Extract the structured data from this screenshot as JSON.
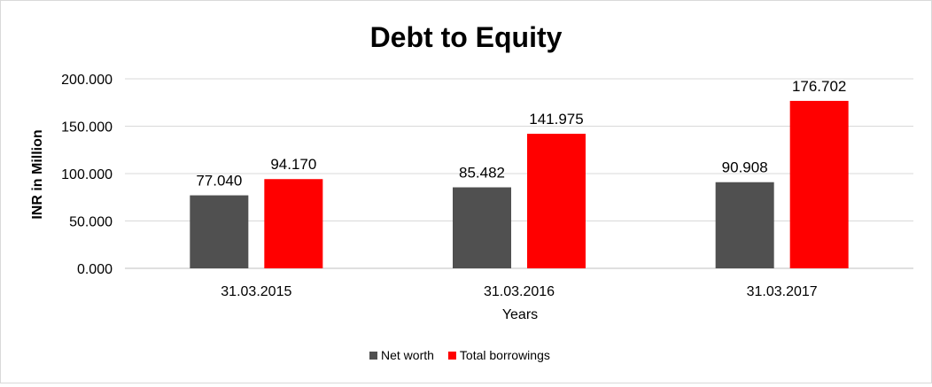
{
  "chart_data": {
    "type": "bar",
    "title": "Debt to Equity",
    "xlabel": "Years",
    "ylabel": "INR in Million",
    "categories": [
      "31.03.2015",
      "31.03.2016",
      "31.03.2017"
    ],
    "series": [
      {
        "name": "Net worth",
        "color": "#505050",
        "values": [
          77.04,
          85.482,
          90.908
        ],
        "labels": [
          "77.040",
          "85.482",
          "90.908"
        ]
      },
      {
        "name": "Total borrowings",
        "color": "#ff0000",
        "values": [
          94.17,
          141.975,
          176.702
        ],
        "labels": [
          "94.170",
          "141.975",
          "176.702"
        ]
      }
    ],
    "ylim": [
      0,
      200
    ],
    "yticks": [
      0,
      50,
      100,
      150,
      200
    ],
    "ytick_labels": [
      "0.000",
      "50.000",
      "100.000",
      "150.000",
      "200.000"
    ],
    "grid": true,
    "legend_position": "bottom"
  }
}
